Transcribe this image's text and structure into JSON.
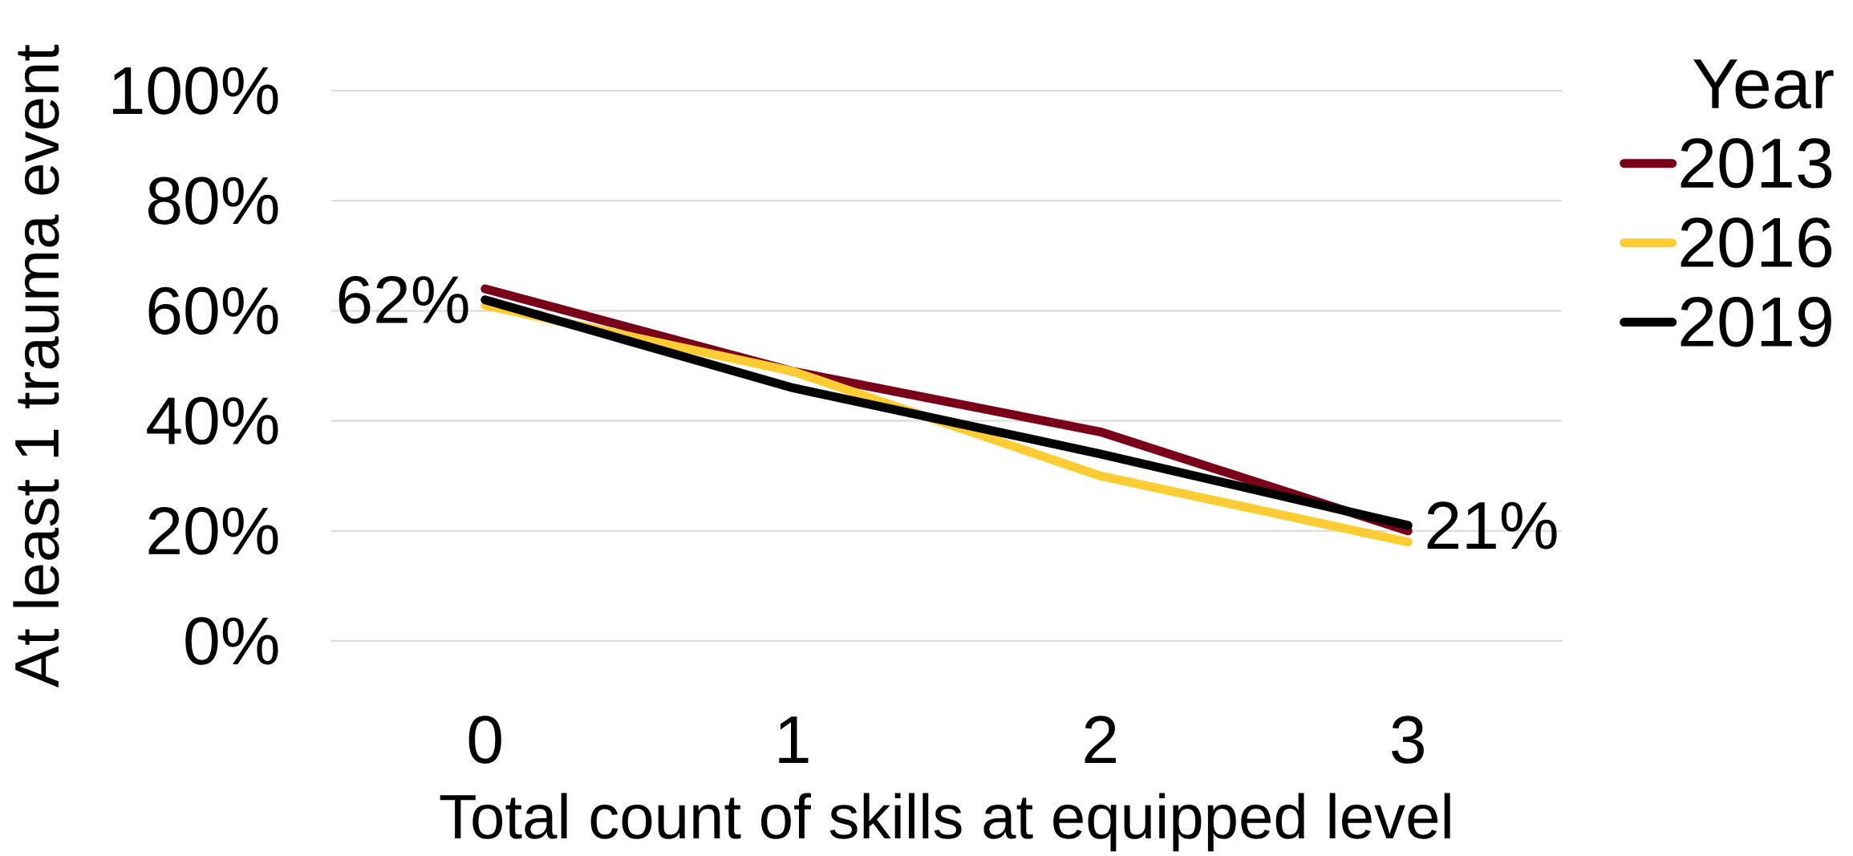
{
  "chart_data": {
    "type": "line",
    "xlabel": "Total count of skills at equipped level",
    "ylabel": "At least 1 trauma event",
    "legend_title": "Year",
    "categories": [
      "0",
      "1",
      "2",
      "3"
    ],
    "series": [
      {
        "name": "2013",
        "color": "#7a0019",
        "values": [
          64,
          49,
          38,
          20
        ]
      },
      {
        "name": "2016",
        "color": "#ffcc33",
        "values": [
          61,
          49,
          30,
          18
        ]
      },
      {
        "name": "2019",
        "color": "#000000",
        "values": [
          62,
          46,
          34,
          21
        ],
        "value_labels": [
          "62%",
          null,
          null,
          "21%"
        ]
      }
    ],
    "ylim": [
      0,
      100
    ],
    "yticks": [
      {
        "value": 0,
        "label": "0%"
      },
      {
        "value": 20,
        "label": "20%"
      },
      {
        "value": 40,
        "label": "40%"
      },
      {
        "value": 60,
        "label": "60%"
      },
      {
        "value": 80,
        "label": "80%"
      },
      {
        "value": 100,
        "label": "100%"
      }
    ],
    "grid": "y",
    "legend": "right",
    "marker": "none",
    "line_style": "solid"
  }
}
